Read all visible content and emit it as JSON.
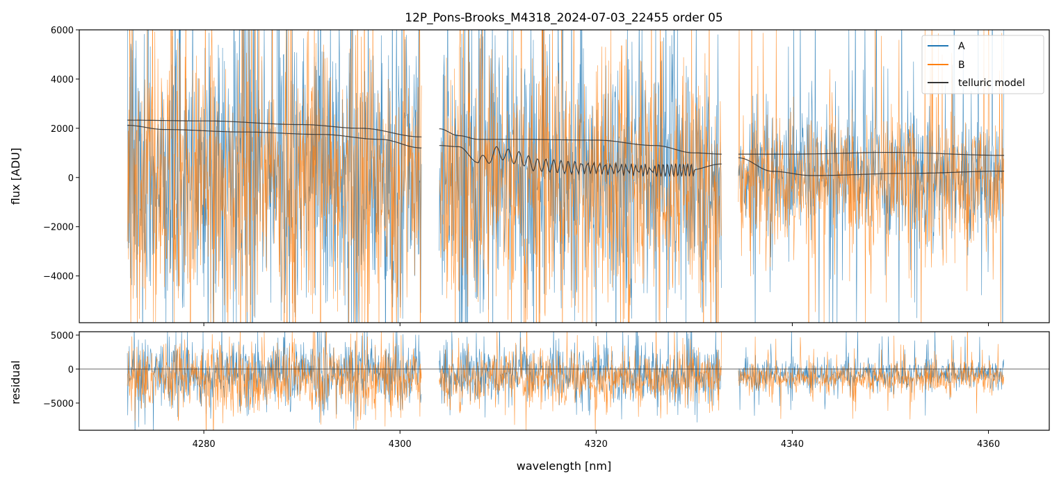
{
  "chart_data": [
    {
      "panel": "top",
      "type": "line",
      "title": "12P_Pons-Brooks_M4318_2024-07-03_22455  order 05",
      "xlabel": "",
      "ylabel": "flux [ADU]",
      "xlim": [
        4267.3,
        4366.2
      ],
      "ylim": [
        -5900,
        6000
      ],
      "xticks": [
        4280,
        4300,
        4320,
        4340,
        4360
      ],
      "xtick_labels_visible": false,
      "yticks": [
        -4000,
        -2000,
        0,
        2000,
        4000,
        6000
      ],
      "ytick_labels": [
        "−4000",
        "−2000",
        "0",
        "2000",
        "4000",
        "6000"
      ],
      "legend": {
        "position": "top-right",
        "entries": [
          "A",
          "B",
          "telluric model"
        ]
      },
      "segments": [
        {
          "x0": 4272.2,
          "x1": 4302.2
        },
        {
          "x0": 4304.0,
          "x1": 4332.8
        },
        {
          "x0": 4334.5,
          "x1": 4361.6
        }
      ],
      "series": [
        {
          "name": "A",
          "color": "#1f77b4",
          "kind": "noisy-spectrum",
          "center_level": 0,
          "typical_spread": 3000
        },
        {
          "name": "B",
          "color": "#ff7f0e",
          "kind": "noisy-spectrum",
          "center_level": 0,
          "typical_spread": 3000
        },
        {
          "name": "telluric model",
          "color": "#333333",
          "lines": [
            {
              "segment": 0,
              "points": [
                [
                  4272.2,
                  2330
                ],
                [
                  4280,
                  2300
                ],
                [
                  4290,
                  2150
                ],
                [
                  4296,
                  2000
                ],
                [
                  4302.2,
                  1650
                ]
              ]
            },
            {
              "segment": 0,
              "points": [
                [
                  4272.2,
                  2120
                ],
                [
                  4276,
                  1950
                ],
                [
                  4284,
                  1850
                ],
                [
                  4292,
                  1750
                ],
                [
                  4298,
                  1550
                ],
                [
                  4302.2,
                  1200
                ]
              ]
            },
            {
              "segment": 1,
              "points": [
                [
                  4304.0,
                  1980
                ],
                [
                  4306,
                  1700
                ],
                [
                  4308,
                  1550
                ],
                [
                  4312,
                  1550
                ],
                [
                  4320,
                  1520
                ],
                [
                  4326,
                  1300
                ],
                [
                  4330,
                  1000
                ],
                [
                  4332.8,
                  950
                ]
              ]
            },
            {
              "segment": 1,
              "points": [
                [
                  4304.0,
                  1300
                ],
                [
                  4306,
                  1250
                ],
                [
                  4308,
                  600
                ],
                [
                  4310,
                  1000
                ],
                [
                  4312,
                  800
                ],
                [
                  4314,
                  500
                ],
                [
                  4318,
                  400
                ],
                [
                  4326,
                  300
                ],
                [
                  4329.5,
                  300
                ],
                [
                  4332.8,
                  550
                ]
              ]
            },
            {
              "segment": 2,
              "points": [
                [
                  4334.5,
                  950
                ],
                [
                  4340,
                  950
                ],
                [
                  4350,
                  1020
                ],
                [
                  4361.6,
                  900
                ]
              ]
            },
            {
              "segment": 2,
              "points": [
                [
                  4334.5,
                  800
                ],
                [
                  4338,
                  250
                ],
                [
                  4342,
                  80
                ],
                [
                  4352,
                  170
                ],
                [
                  4361.6,
                  260
                ]
              ]
            }
          ]
        }
      ]
    },
    {
      "panel": "bottom",
      "type": "line",
      "xlabel": "wavelength [nm]",
      "ylabel": "residual",
      "xlim": [
        4267.3,
        4366.2
      ],
      "ylim": [
        -9000,
        5500
      ],
      "xticks": [
        4280,
        4300,
        4320,
        4340,
        4360
      ],
      "xtick_labels": [
        "4280",
        "4300",
        "4320",
        "4340",
        "4360"
      ],
      "yticks": [
        -5000,
        0,
        5000
      ],
      "ytick_labels": [
        "−5000",
        "0",
        "5000"
      ],
      "reference_line": 0,
      "series": [
        {
          "name": "A",
          "color": "#1f77b4",
          "kind": "noisy-residual",
          "center_level": -1000,
          "typical_spread": 2500
        },
        {
          "name": "B",
          "color": "#ff7f0e",
          "kind": "noisy-residual",
          "center_level": -1000,
          "typical_spread": 2500
        }
      ]
    }
  ]
}
